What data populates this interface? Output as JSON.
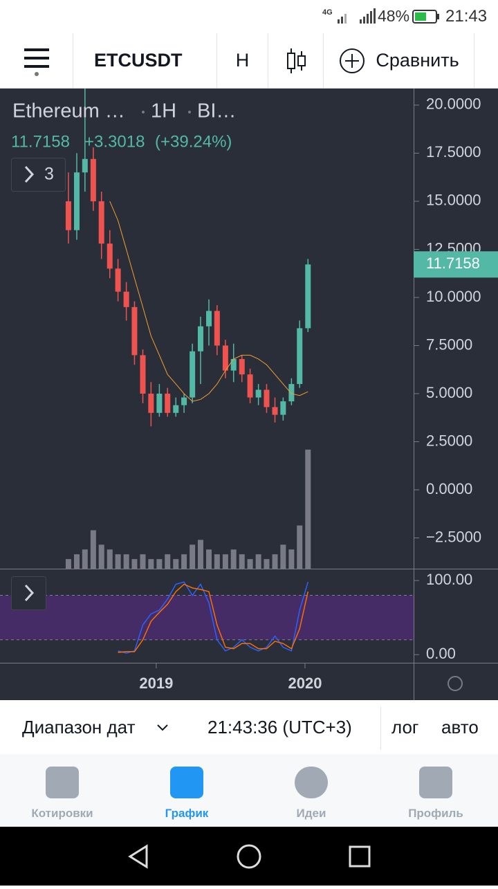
{
  "status_bar": {
    "network": "4G",
    "battery": "48%",
    "time": "21:43"
  },
  "toolbar": {
    "symbol": "ETCUSDT",
    "interval": "H",
    "compare": "Сравнить"
  },
  "chart_data": [
    {
      "type": "candlestick",
      "legend": {
        "symbol": "Ethereum …",
        "interval": "1H",
        "exchange": "BI…",
        "last": "11.7158",
        "change": "+3.3018",
        "change_pct": "(+39.24%)",
        "indicators_count": "3"
      },
      "x": [
        2018.41,
        2018.466,
        2018.521,
        2018.577,
        2018.632,
        2018.688,
        2018.743,
        2018.799,
        2018.854,
        2018.91,
        2018.965,
        2019.021,
        2019.076,
        2019.132,
        2019.187,
        2019.243,
        2019.298,
        2019.354,
        2019.409,
        2019.465,
        2019.52,
        2019.576,
        2019.631,
        2019.687,
        2019.742,
        2019.798,
        2019.853,
        2019.909,
        2019.964,
        2020.02
      ],
      "open": [
        15,
        13.5,
        16.5,
        17.2,
        15,
        12.8,
        11.5,
        10.3,
        9.5,
        7,
        5,
        4,
        5,
        4,
        4.4,
        4.8,
        7.2,
        8.5,
        9.3,
        7.5,
        6.2,
        6.8,
        6,
        4.8,
        5.2,
        4.3,
        3.9,
        4.6,
        5.5,
        8.4
      ],
      "high": [
        16.5,
        17.5,
        21,
        17.8,
        15.5,
        13.5,
        12,
        10.8,
        9.8,
        7.3,
        5.6,
        5.5,
        5.3,
        4.8,
        5,
        7.6,
        9,
        9.9,
        9.6,
        7.8,
        7.6,
        7,
        6.3,
        5.5,
        5.5,
        4.8,
        4.8,
        5.8,
        8.8,
        12
      ],
      "low": [
        12.8,
        13,
        15.5,
        14.5,
        12,
        11,
        9.8,
        8.8,
        6.5,
        4.5,
        3.3,
        3.8,
        3.8,
        3.8,
        4,
        4.5,
        5.5,
        7.5,
        7,
        5.8,
        5.6,
        5.6,
        4.5,
        4.4,
        4,
        3.5,
        3.6,
        4.4,
        5.3,
        8.2
      ],
      "close": [
        13.5,
        16.5,
        17.2,
        15,
        12.8,
        11.5,
        10.3,
        9.5,
        7,
        5,
        4,
        5,
        4,
        4.4,
        4.8,
        7.2,
        8.5,
        9.3,
        7.5,
        6.2,
        6.8,
        6,
        4.8,
        5.2,
        4.3,
        3.9,
        4.6,
        5.5,
        8.4,
        11.7158
      ],
      "ma": [
        null,
        null,
        null,
        null,
        null,
        15,
        14,
        12.5,
        11,
        9.5,
        8,
        7,
        6,
        5.5,
        5,
        4.6,
        4.7,
        5,
        5.5,
        6.2,
        6.8,
        7,
        7,
        6.8,
        6.5,
        6,
        5.5,
        5,
        4.9,
        5.1
      ],
      "ma_color": "#f0a030",
      "volume": [
        2,
        3,
        4,
        8,
        5,
        4,
        3,
        3,
        2,
        3,
        2,
        2,
        3,
        2,
        3,
        5,
        6,
        4,
        3,
        3,
        4,
        3,
        2,
        3,
        2,
        3,
        5,
        4,
        9,
        24.8
      ],
      "volume_color": "#787b86",
      "y2lim": [
        0,
        100
      ],
      "up_color": "#53b9a6",
      "down_color": "#ef5350",
      "last_price": 11.7158,
      "xlim": [
        2017.95,
        2020.73
      ],
      "xticks": [
        2019,
        2020
      ],
      "ylim": [
        -4.1,
        20.86
      ],
      "yticks": [
        {
          "value": 20,
          "label": "20.0000"
        },
        {
          "value": 17.5,
          "label": "17.5000"
        },
        {
          "value": 15,
          "label": "15.0000"
        },
        {
          "value": 12.5,
          "label": "12.5000"
        },
        {
          "value": 10,
          "label": "10.0000"
        },
        {
          "value": 7.5,
          "label": "7.5000"
        },
        {
          "value": 5,
          "label": "5.0000"
        },
        {
          "value": 2.5,
          "label": "2.5000"
        },
        {
          "value": 0,
          "label": "0.0000"
        },
        {
          "value": -2.5,
          "label": "−2.5000"
        }
      ]
    },
    {
      "type": "line",
      "ylim": [
        -11,
        116
      ],
      "yticks": [
        {
          "value": 100,
          "label": "100.00"
        },
        {
          "value": 0,
          "label": "0.00"
        }
      ],
      "band": [
        20,
        80
      ],
      "band_color": "#4a2c6e",
      "series": [
        {
          "color": "#2962ff",
          "values": [
            null,
            null,
            null,
            null,
            null,
            null,
            5,
            2,
            5,
            40,
            55,
            60,
            75,
            95,
            98,
            80,
            95,
            70,
            20,
            5,
            10,
            20,
            10,
            5,
            10,
            25,
            10,
            5,
            60,
            98
          ]
        },
        {
          "color": "#ff6d00",
          "values": [
            null,
            null,
            null,
            null,
            null,
            null,
            3,
            4,
            4,
            20,
            45,
            57,
            68,
            85,
            95,
            90,
            88,
            85,
            40,
            10,
            8,
            15,
            15,
            8,
            8,
            18,
            15,
            8,
            35,
            85
          ]
        }
      ]
    }
  ],
  "bottom_bar": {
    "date_range": "Диапазон дат",
    "clock": "21:43:36 (UTC+3)",
    "log": "лог",
    "auto": "авто"
  },
  "nav": {
    "quotes": "Котировки",
    "chart": "График",
    "ideas": "Идеи",
    "profile": "Профиль"
  }
}
